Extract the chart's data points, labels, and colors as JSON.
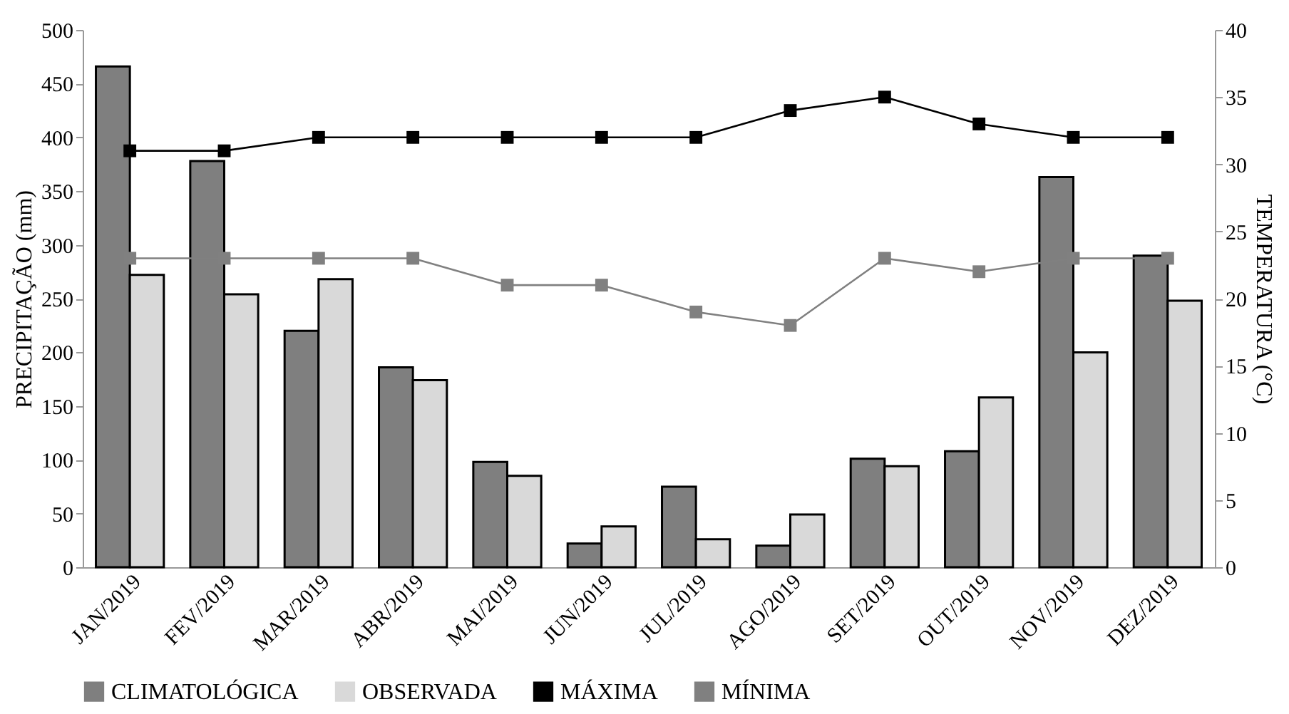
{
  "chart_data": {
    "type": "bar",
    "ylabel": "PRECIPITAÇÃO (mm)",
    "y2label": "TEMPERATURA (°C)",
    "categories": [
      "JAN/2019",
      "FEV/2019",
      "MAR/2019",
      "ABR/2019",
      "MAI/2019",
      "JUN/2019",
      "JUL/2019",
      "AGO/2019",
      "SET/2019",
      "OUT/2019",
      "NOV/2019",
      "DEZ/2019"
    ],
    "series": [
      {
        "name": "CLIMATOLÓGICA",
        "color": "#7f7f7f",
        "values": [
          466,
          378,
          220,
          186,
          98,
          22,
          75,
          20,
          101,
          108,
          363,
          290
        ]
      },
      {
        "name": "OBSERVADA",
        "color": "#d9d9d9",
        "values": [
          272,
          254,
          268,
          174,
          85,
          38,
          26,
          49,
          94,
          158,
          200,
          248
        ]
      },
      {
        "name": "MÁXIMA",
        "type": "line",
        "axis": "y2",
        "color": "#000000",
        "values": [
          31,
          31,
          32,
          32,
          32,
          32,
          32,
          34,
          35,
          33,
          32,
          32
        ]
      },
      {
        "name": "MÍNIMA",
        "type": "line",
        "axis": "y2",
        "color": "#808080",
        "values": [
          23,
          23,
          23,
          23,
          21,
          21,
          19,
          18,
          23,
          22,
          23,
          23
        ]
      }
    ],
    "ylim": [
      0,
      500
    ],
    "yticks": [
      0,
      50,
      100,
      150,
      200,
      250,
      300,
      350,
      400,
      450,
      500
    ],
    "y2lim": [
      0,
      40
    ],
    "y2ticks": [
      0,
      5,
      10,
      15,
      20,
      25,
      30,
      35,
      40
    ],
    "grid": false,
    "legend": "bottom",
    "marker": "square",
    "line_style": "solid"
  }
}
